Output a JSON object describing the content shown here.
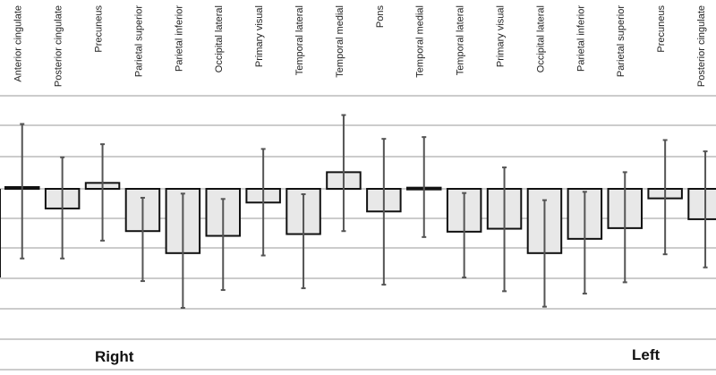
{
  "chart_data": {
    "type": "bar",
    "title": "",
    "xlabel": "",
    "ylabel": "",
    "ylim": [
      -2.0,
      1.0
    ],
    "grid": true,
    "legend": "none",
    "categories": [
      "Anterior cingulate",
      "Posterior cingulate",
      "Precuneus",
      "Parietal superior",
      "Parietal inferior",
      "Occipital lateral",
      "Primary visual",
      "Temporal lateral",
      "Temporal medial",
      "Pons",
      "Temporal medial",
      "Temporal lateral",
      "Primary visual",
      "Occipital lateral",
      "Parietal inferior",
      "Parietal superior",
      "Precuneus",
      "Posterior cingulate"
    ],
    "values": [
      -0.03,
      0.33,
      -0.1,
      0.71,
      1.08,
      0.79,
      0.23,
      0.76,
      -0.28,
      0.38,
      -0.02,
      0.72,
      0.67,
      1.08,
      0.84,
      0.66,
      0.16,
      0.51
    ],
    "error_low": [
      1.17,
      1.17,
      0.87,
      1.55,
      2.0,
      1.7,
      1.12,
      1.67,
      0.71,
      1.61,
      0.81,
      1.49,
      1.72,
      1.98,
      1.76,
      1.57,
      1.1,
      1.32
    ],
    "error_high": [
      -1.09,
      -0.53,
      -0.75,
      0.15,
      0.08,
      0.17,
      -0.67,
      0.09,
      -1.24,
      -0.84,
      -0.87,
      0.07,
      -0.36,
      0.19,
      0.05,
      -0.28,
      -0.82,
      -0.63
    ],
    "group_labels": [
      "Right",
      "Left"
    ]
  },
  "colors": {
    "bar_fill": "#e8e8e8",
    "bar_stroke": "#111111",
    "error_bar": "#555555",
    "grid": "#9a9a9a"
  }
}
